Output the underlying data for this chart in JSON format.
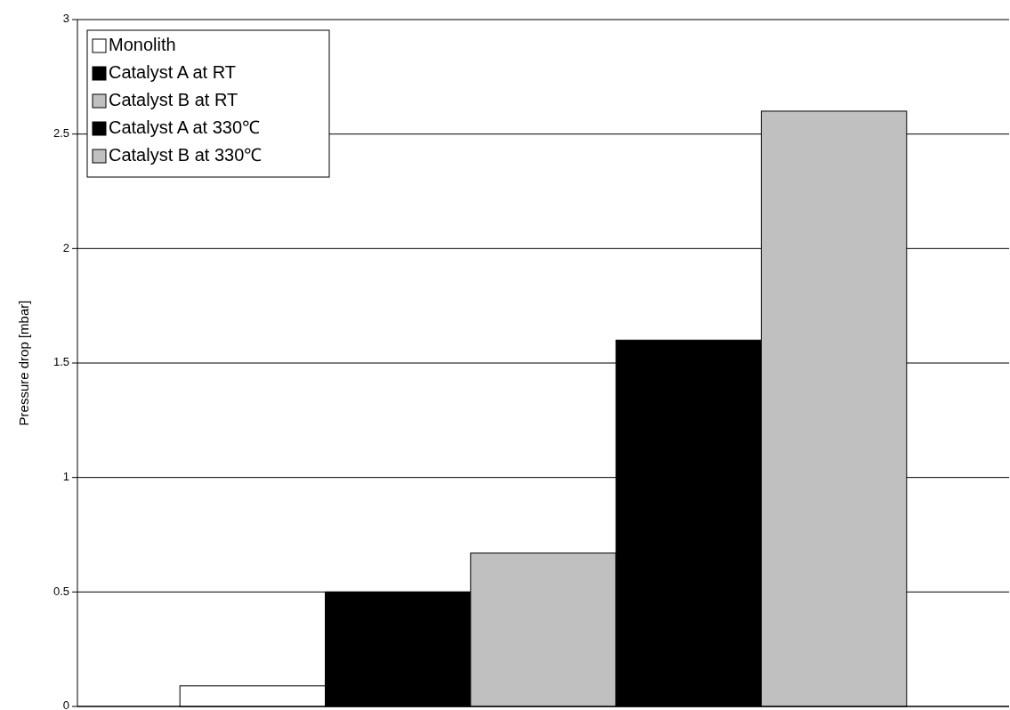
{
  "chart_data": {
    "type": "bar",
    "ylabel": "Pressure drop [mbar]",
    "categories": [
      null
    ],
    "series": [
      {
        "name": "Monolith",
        "color": "#ffffff",
        "values": [
          0.09
        ]
      },
      {
        "name": "Catalyst A at RT",
        "color": "#000000",
        "values": [
          0.5
        ]
      },
      {
        "name": "Catalyst B at RT",
        "color": "#c0c0c0",
        "values": [
          0.67
        ]
      },
      {
        "name": "Catalyst A at 330℃",
        "color": "#000000",
        "values": [
          1.6
        ]
      },
      {
        "name": "Catalyst B at 330℃",
        "color": "#c0c0c0",
        "values": [
          2.6
        ]
      }
    ],
    "ylim": [
      0,
      3
    ],
    "yticks": [
      0,
      0.5,
      1,
      1.5,
      2,
      2.5,
      3
    ],
    "grid": "y",
    "legend": "top left"
  }
}
